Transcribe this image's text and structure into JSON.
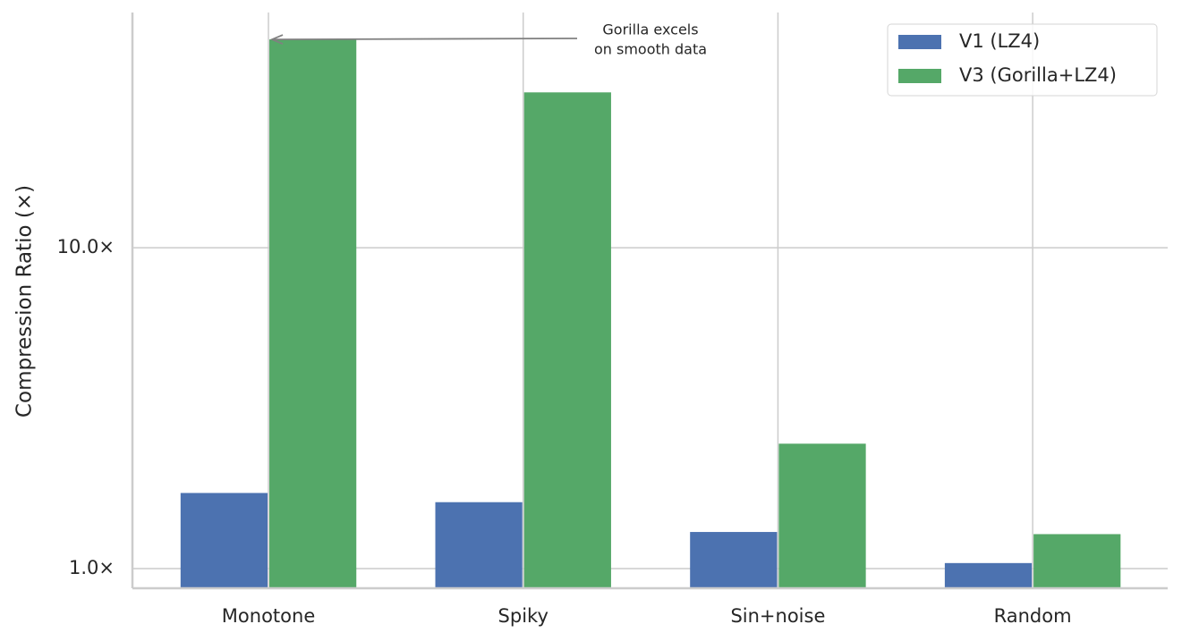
{
  "chart_data": {
    "type": "bar",
    "y_label": "Compression Ratio (×)",
    "categories": [
      "Monotone",
      "Spiky",
      "Sin+noise",
      "Random"
    ],
    "series": [
      {
        "name": "V1 (LZ4)",
        "color": "#4c72b0",
        "values": [
          1.72,
          1.61,
          1.3,
          1.04
        ]
      },
      {
        "name": "V3 (Gorilla+LZ4)",
        "color": "#55a868",
        "values": [
          44.6,
          30.5,
          2.45,
          1.28
        ]
      }
    ],
    "y_scale": "log",
    "ylim": [
      0.868,
      54.1
    ],
    "yticks": [
      {
        "value": 1,
        "label": "1.0×"
      },
      {
        "value": 10,
        "label": "10.0×"
      }
    ],
    "grid": true,
    "legend_position": "upper right",
    "annotation": {
      "lines": [
        "Gorilla excels",
        "on smooth data"
      ]
    }
  }
}
